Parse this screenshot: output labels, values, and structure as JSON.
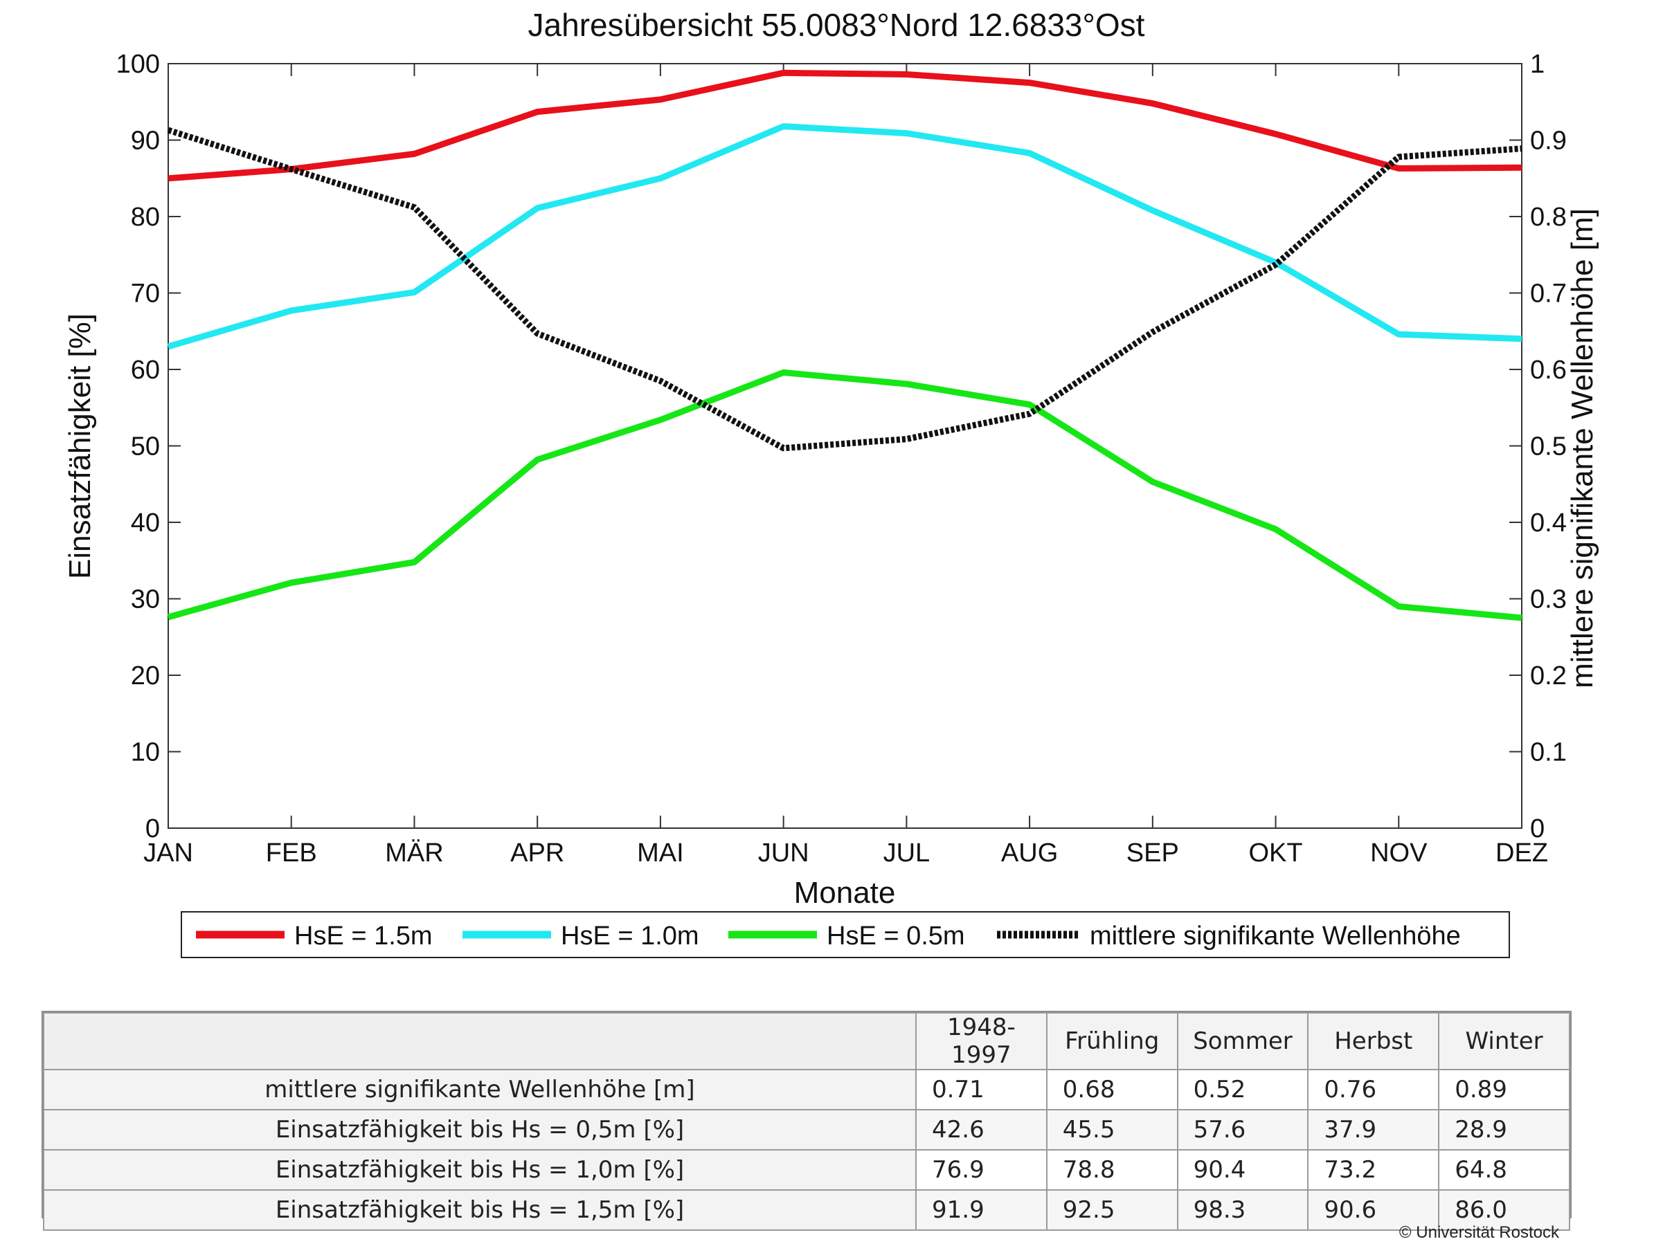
{
  "chart_data": {
    "type": "line",
    "title": "Jahresübersicht  55.0083°Nord  12.6833°Ost",
    "xlabel": "Monate",
    "ylabel": "Einsatzfähigkeit [%]",
    "ylabel_right": "mittlere signifikante Wellenhöhe [m]",
    "categories": [
      "JAN",
      "FEB",
      "MÄR",
      "APR",
      "MAI",
      "JUN",
      "JUL",
      "AUG",
      "SEP",
      "OKT",
      "NOV",
      "DEZ"
    ],
    "ylim": [
      0,
      100
    ],
    "yticks": [
      "0",
      "10",
      "20",
      "30",
      "40",
      "50",
      "60",
      "70",
      "80",
      "90",
      "100"
    ],
    "ylim_right": [
      0,
      1
    ],
    "yticks_right": [
      "0",
      "0.1",
      "0.2",
      "0.3",
      "0.4",
      "0.5",
      "0.6",
      "0.7",
      "0.8",
      "0.9",
      "1"
    ],
    "grid": false,
    "legend_position": "bottom",
    "series": [
      {
        "name": "HsE = 1.5m",
        "axis": "left",
        "color": "#e8101a",
        "style": "solid",
        "values": [
          85.0,
          86.2,
          88.2,
          93.7,
          95.3,
          98.8,
          98.6,
          97.5,
          94.8,
          90.8,
          86.3,
          86.4
        ]
      },
      {
        "name": "HsE = 1.0m",
        "axis": "left",
        "color": "#22e8f2",
        "style": "solid",
        "values": [
          63.0,
          67.7,
          70.1,
          81.1,
          85.0,
          91.8,
          90.9,
          88.3,
          80.8,
          74.0,
          64.6,
          64.0
        ]
      },
      {
        "name": "HsE = 0.5m",
        "axis": "left",
        "color": "#16e616",
        "style": "solid",
        "values": [
          27.6,
          32.1,
          34.8,
          48.2,
          53.4,
          59.6,
          58.1,
          55.4,
          45.3,
          39.1,
          29.0,
          27.5
        ]
      },
      {
        "name": "mittlere signifikante Wellenhöhe",
        "axis": "right",
        "color": "#111111",
        "style": "dotted",
        "values": [
          0.913,
          0.862,
          0.812,
          0.647,
          0.585,
          0.497,
          0.509,
          0.542,
          0.649,
          0.737,
          0.878,
          0.889
        ]
      }
    ]
  },
  "table": {
    "header": [
      "1948-1997",
      "Frühling",
      "Sommer",
      "Herbst",
      "Winter"
    ],
    "rows": [
      {
        "label": "mittlere signifikante Wellenhöhe [m]",
        "values": [
          "0.71",
          "0.68",
          "0.52",
          "0.76",
          "0.89"
        ]
      },
      {
        "label": "Einsatzfähigkeit bis Hs = 0,5m [%]",
        "values": [
          "42.6",
          "45.5",
          "57.6",
          "37.9",
          "28.9"
        ]
      },
      {
        "label": "Einsatzfähigkeit bis Hs = 1,0m [%]",
        "values": [
          "76.9",
          "78.8",
          "90.4",
          "73.2",
          "64.8"
        ]
      },
      {
        "label": "Einsatzfähigkeit bis Hs = 1,5m [%]",
        "values": [
          "91.9",
          "92.5",
          "98.3",
          "90.6",
          "86.0"
        ]
      }
    ]
  },
  "copyright": "© Universität Rostock"
}
